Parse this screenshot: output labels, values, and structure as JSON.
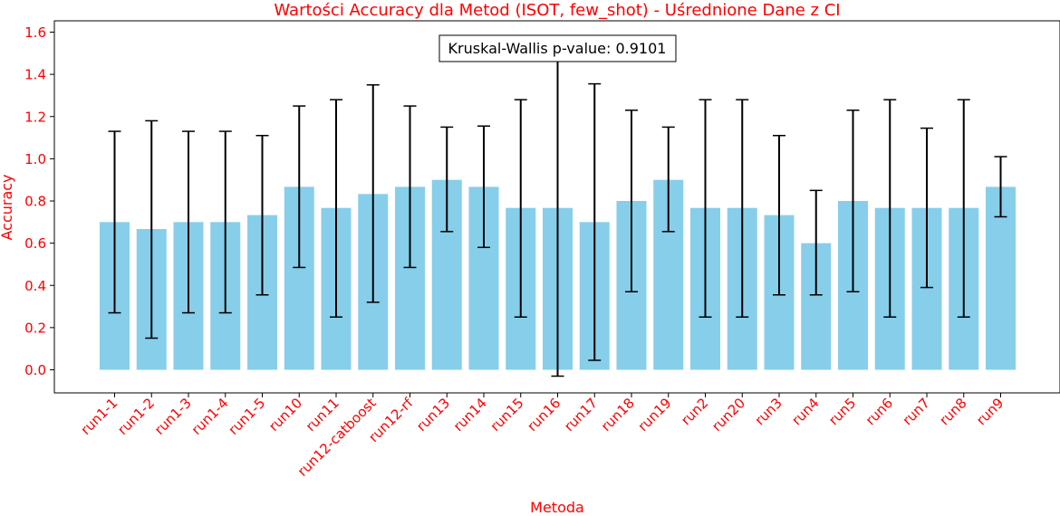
{
  "chart_data": {
    "type": "bar",
    "title": "Wartości Accuracy dla Metod (ISOT, few_shot) - Uśrednione Dane z CI",
    "xlabel": "Metoda",
    "ylabel": "Accuracy",
    "annotation": "Kruskal-Wallis p-value: 0.9101",
    "ylim": [
      -0.11,
      1.65
    ],
    "yticks": [
      "0.0",
      "0.2",
      "0.4",
      "0.6",
      "0.8",
      "1.0",
      "1.2",
      "1.4",
      "1.6"
    ],
    "ytick_values": [
      0.0,
      0.2,
      0.4,
      0.6,
      0.8,
      1.0,
      1.2,
      1.4,
      1.6
    ],
    "categories": [
      "run1-1",
      "run1-2",
      "run1-3",
      "run1-4",
      "run1-5",
      "run10",
      "run11",
      "run12-catboost",
      "run12-rf",
      "run13",
      "run14",
      "run15",
      "run16",
      "run17",
      "run18",
      "run19",
      "run2",
      "run20",
      "run3",
      "run4",
      "run5",
      "run6",
      "run7",
      "run8",
      "run9"
    ],
    "values": [
      0.7,
      0.667,
      0.7,
      0.7,
      0.733,
      0.867,
      0.767,
      0.833,
      0.867,
      0.9,
      0.867,
      0.767,
      0.767,
      0.7,
      0.8,
      0.9,
      0.767,
      0.767,
      0.733,
      0.6,
      0.8,
      0.767,
      0.767,
      0.767,
      0.867
    ],
    "ci_low": [
      0.27,
      0.15,
      0.27,
      0.27,
      0.355,
      0.485,
      0.25,
      0.32,
      0.485,
      0.655,
      0.58,
      0.25,
      -0.03,
      0.045,
      0.37,
      0.655,
      0.25,
      0.25,
      0.355,
      0.355,
      0.37,
      0.25,
      0.39,
      0.25,
      0.725
    ],
    "ci_high": [
      1.13,
      1.18,
      1.13,
      1.13,
      1.11,
      1.25,
      1.28,
      1.35,
      1.25,
      1.15,
      1.155,
      1.28,
      1.57,
      1.355,
      1.23,
      1.15,
      1.28,
      1.28,
      1.11,
      0.85,
      1.23,
      1.28,
      1.145,
      1.28,
      1.01
    ],
    "colors": {
      "bar": "#87ceeb",
      "errorbar": "#000000",
      "label": "#ff0000",
      "axis": "#000000"
    },
    "grid": false
  }
}
